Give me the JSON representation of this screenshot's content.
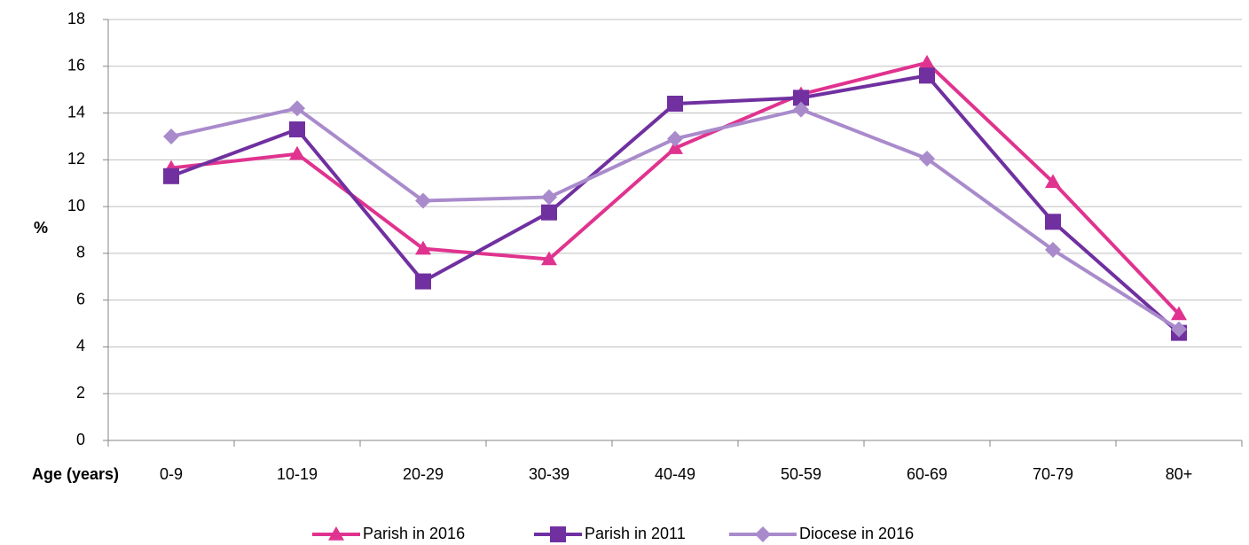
{
  "chart_data": {
    "type": "line",
    "y_label": "%",
    "x_label": "Age (years)",
    "categories": [
      "0-9",
      "10-19",
      "20-29",
      "30-39",
      "40-49",
      "50-59",
      "60-69",
      "70-79",
      "80+"
    ],
    "series": [
      {
        "name": "Parish in 2016",
        "color": "#e0338f",
        "marker": "triangle",
        "values": [
          11.65,
          12.25,
          8.2,
          7.75,
          12.5,
          14.8,
          16.15,
          11.05,
          5.4
        ]
      },
      {
        "name": "Parish in 2011",
        "color": "#7030a0",
        "marker": "square",
        "values": [
          11.3,
          13.3,
          6.8,
          9.75,
          14.4,
          14.65,
          15.6,
          9.35,
          4.6
        ]
      },
      {
        "name": "Diocese in 2016",
        "color": "#a98bcc",
        "marker": "diamond",
        "values": [
          13.0,
          14.2,
          10.25,
          10.4,
          12.9,
          14.15,
          12.05,
          8.15,
          4.75
        ]
      }
    ],
    "ylim": [
      0,
      18
    ],
    "yticks": [
      0,
      2,
      4,
      6,
      8,
      10,
      12,
      14,
      16,
      18
    ],
    "grid": true,
    "legend": "bottom"
  }
}
